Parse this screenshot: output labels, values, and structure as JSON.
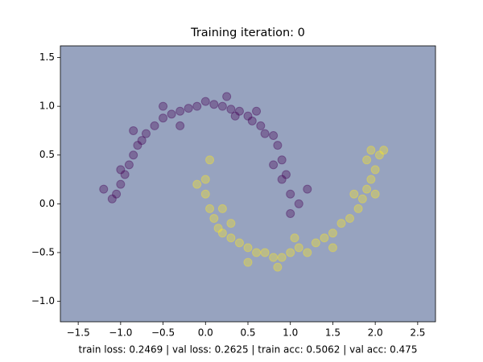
{
  "chart_data": {
    "type": "scatter",
    "title": "Training iteration: 0",
    "xlabel": "train loss: 0.2469 | val loss: 0.2625 | train acc: 0.5062 | val acc: 0.475",
    "xlim": [
      -1.71,
      2.71
    ],
    "ylim": [
      -1.21,
      1.62
    ],
    "xticks": [
      {
        "value": -1.5,
        "label": "−1.5"
      },
      {
        "value": -1.0,
        "label": "−1.0"
      },
      {
        "value": -0.5,
        "label": "−0.5"
      },
      {
        "value": 0,
        "label": "0.0"
      },
      0.5,
      {
        "value": 1,
        "label": "1.0"
      },
      1.5,
      {
        "value": 2,
        "label": "2.0"
      },
      2.5
    ],
    "yticks": [
      {
        "value": -1.0,
        "label": "−1.0"
      },
      {
        "value": -0.5,
        "label": "−0.5"
      },
      {
        "value": 0,
        "label": "0.0"
      },
      0.5,
      {
        "value": 1,
        "label": "1.0"
      },
      1.5
    ],
    "series": [
      {
        "color": "#440154",
        "x": [
          1.0,
          0.95,
          0.9,
          0.85,
          0.8,
          0.7,
          0.65,
          0.55,
          0.5,
          0.4,
          0.3,
          0.2,
          0.1,
          0.0,
          -0.1,
          -0.2,
          -0.3,
          -0.4,
          -0.5,
          -0.6,
          -0.7,
          -0.75,
          -0.8,
          -0.85,
          -0.9,
          -0.95,
          -1.0,
          -1.05,
          -1.1,
          -1.2,
          1.1,
          1.2,
          0.9,
          0.25,
          -0.3,
          0.6,
          -0.85,
          0.8,
          1.0,
          -1.0,
          0.35,
          -0.5
        ],
        "y": [
          0.1,
          0.3,
          0.45,
          0.6,
          0.7,
          0.72,
          0.8,
          0.85,
          0.9,
          0.95,
          0.97,
          1.0,
          1.02,
          1.05,
          1.0,
          0.98,
          0.95,
          0.92,
          0.88,
          0.8,
          0.72,
          0.65,
          0.6,
          0.5,
          0.4,
          0.3,
          0.2,
          0.1,
          0.05,
          0.15,
          0.0,
          0.15,
          0.25,
          1.1,
          0.8,
          0.95,
          0.75,
          0.4,
          -0.1,
          0.35,
          0.9,
          1.0
        ]
      },
      {
        "color": "#fde725",
        "x": [
          0.0,
          0.0,
          0.05,
          0.1,
          0.15,
          0.2,
          0.3,
          0.4,
          0.5,
          0.6,
          0.7,
          0.8,
          0.9,
          1.0,
          1.1,
          1.2,
          1.3,
          1.4,
          1.5,
          1.6,
          1.7,
          1.8,
          1.85,
          1.9,
          1.95,
          2.0,
          2.05,
          2.1,
          1.9,
          2.0,
          0.05,
          -0.1,
          0.2,
          0.5,
          0.85,
          1.5,
          1.75,
          1.95,
          0.3,
          1.05
        ],
        "y": [
          0.25,
          0.1,
          -0.05,
          -0.15,
          -0.25,
          -0.3,
          -0.35,
          -0.4,
          -0.45,
          -0.5,
          -0.5,
          -0.55,
          -0.55,
          -0.5,
          -0.45,
          -0.5,
          -0.4,
          -0.35,
          -0.3,
          -0.2,
          -0.15,
          -0.05,
          0.05,
          0.15,
          0.25,
          0.35,
          0.5,
          0.55,
          0.45,
          0.1,
          0.45,
          0.2,
          -0.05,
          -0.6,
          -0.65,
          -0.45,
          0.1,
          0.55,
          -0.2,
          -0.35
        ]
      }
    ]
  }
}
